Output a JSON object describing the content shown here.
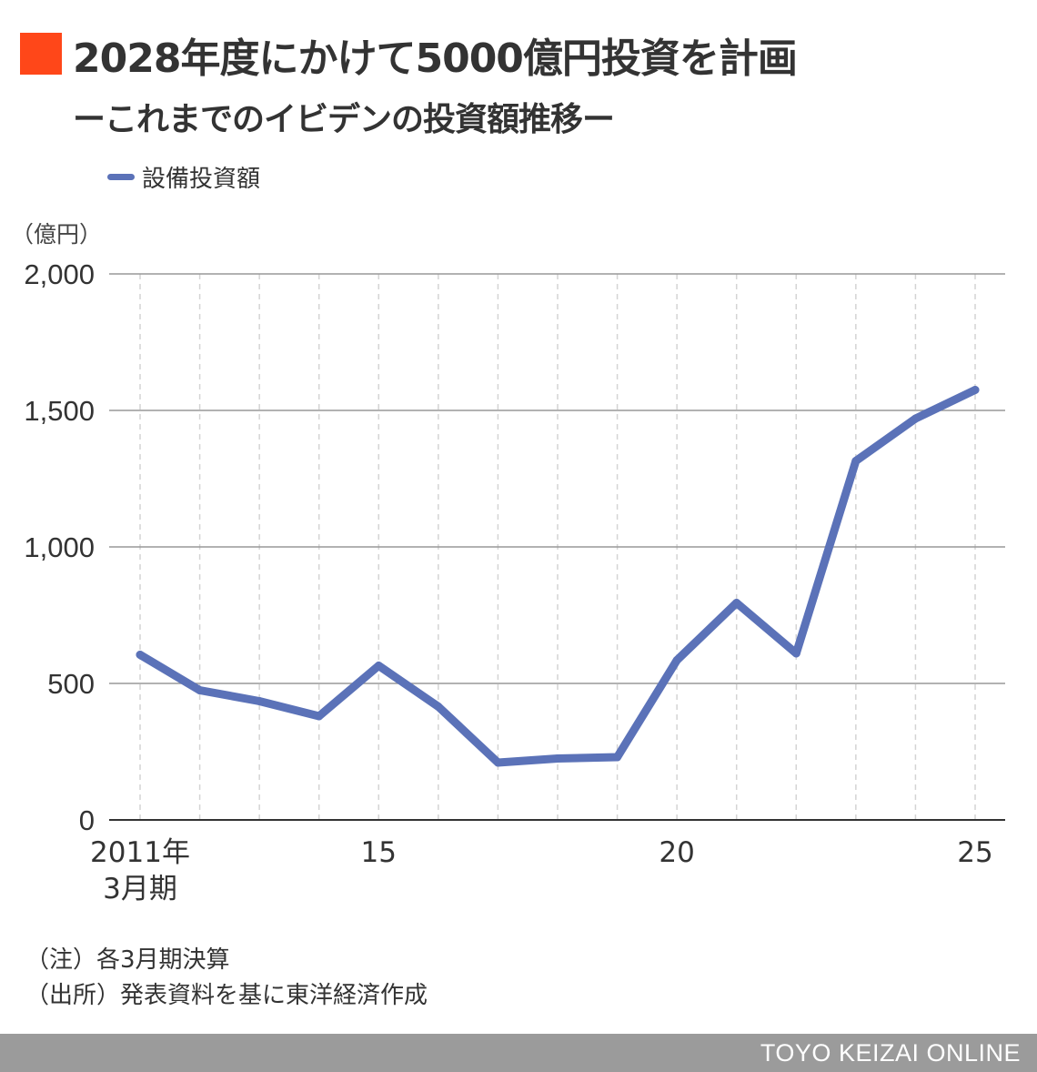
{
  "header": {
    "title": "2028年度にかけて5000億円投資を計画",
    "subtitle": "ーこれまでのイビデンの投資額推移ー"
  },
  "colors": {
    "accent": "#ff4719",
    "line": "#5b72b8",
    "grid": "#999999",
    "vgrid": "#d4d4d4",
    "footer_bg": "#9b9b9b"
  },
  "chart_data": {
    "type": "line",
    "y_unit": "（億円）",
    "x": [
      2011,
      2012,
      2013,
      2014,
      2015,
      2016,
      2017,
      2018,
      2019,
      2020,
      2021,
      2022,
      2023,
      2024,
      2025
    ],
    "x_tick_labels": [
      {
        "x": 2011,
        "lines": [
          "2011年",
          "3月期"
        ]
      },
      {
        "x": 2015,
        "lines": [
          "15"
        ]
      },
      {
        "x": 2020,
        "lines": [
          "20"
        ]
      },
      {
        "x": 2025,
        "lines": [
          "25"
        ]
      }
    ],
    "series": [
      {
        "name": "設備投資額",
        "values": [
          605,
          475,
          435,
          380,
          565,
          415,
          210,
          225,
          230,
          585,
          795,
          610,
          1315,
          1470,
          1575
        ]
      }
    ],
    "ylim": [
      0,
      2000
    ],
    "yticks": [
      0,
      500,
      1000,
      1500,
      2000
    ],
    "ytick_labels": [
      "0",
      "500",
      "1,000",
      "1,500",
      "2,000"
    ],
    "grid": true,
    "legend": "top-left"
  },
  "notes": {
    "note1": "（注）各3月期決算",
    "note2": "（出所）発表資料を基に東洋経済作成"
  },
  "footer": {
    "brand": "TOYO KEIZAI ONLINE"
  }
}
